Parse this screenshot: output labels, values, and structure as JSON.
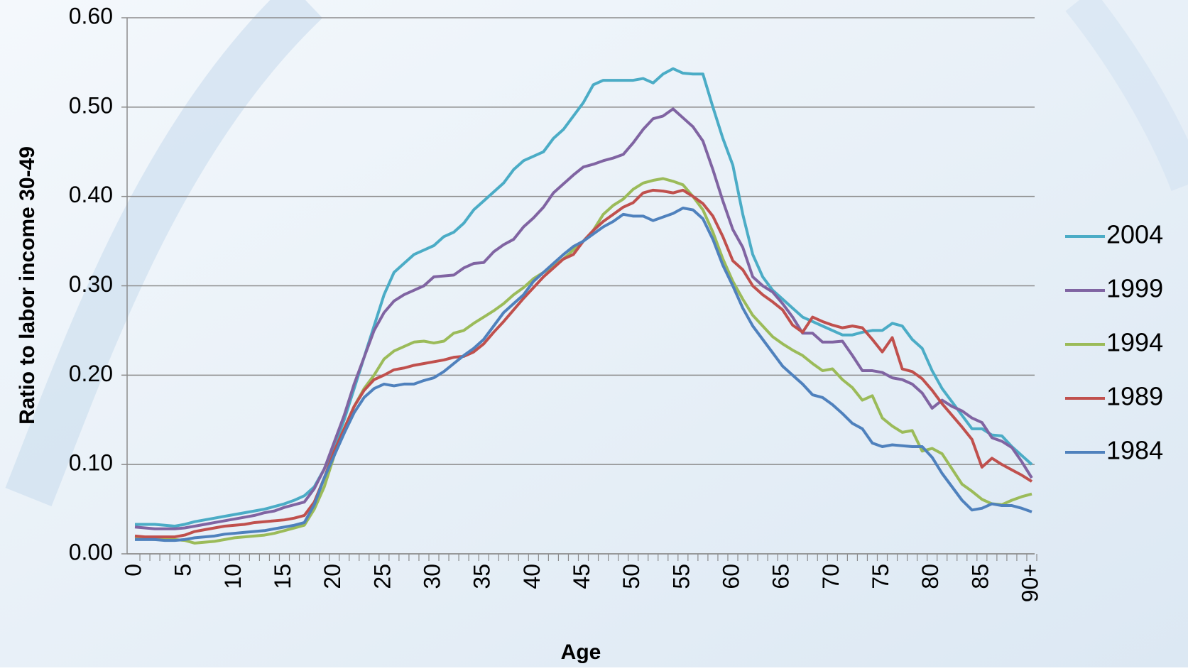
{
  "chart_data": {
    "type": "line",
    "xlabel": "Age",
    "ylabel": "Ratio to labor income 30-49",
    "categories": [
      "0",
      null,
      null,
      null,
      null,
      "5",
      null,
      null,
      null,
      null,
      "10",
      null,
      null,
      null,
      null,
      "15",
      null,
      null,
      null,
      null,
      "20",
      null,
      null,
      null,
      null,
      "25",
      null,
      null,
      null,
      null,
      "30",
      null,
      null,
      null,
      null,
      "35",
      null,
      null,
      null,
      null,
      "40",
      null,
      null,
      null,
      null,
      "45",
      null,
      null,
      null,
      null,
      "50",
      null,
      null,
      null,
      null,
      "55",
      null,
      null,
      null,
      null,
      "60",
      null,
      null,
      null,
      null,
      "65",
      null,
      null,
      null,
      null,
      "70",
      null,
      null,
      null,
      null,
      "75",
      null,
      null,
      null,
      null,
      "80",
      null,
      null,
      null,
      null,
      "85",
      null,
      null,
      null,
      null,
      "90+"
    ],
    "ylim": [
      0,
      0.6
    ],
    "yticks": [
      {
        "value": 0,
        "label": "0.00"
      },
      {
        "value": 0.1,
        "label": "0.10"
      },
      {
        "value": 0.2,
        "label": "0.20"
      },
      {
        "value": 0.3,
        "label": "0.30"
      },
      {
        "value": 0.4,
        "label": "0.40"
      },
      {
        "value": 0.5,
        "label": "0.50"
      },
      {
        "value": 0.6,
        "label": "0.60"
      }
    ],
    "grid": true,
    "legend": "right",
    "series": [
      {
        "name": "2004",
        "color": "#4bacc6",
        "values": [
          0.033,
          0.033,
          0.033,
          0.032,
          0.031,
          0.033,
          0.036,
          0.038,
          0.04,
          0.042,
          0.044,
          0.046,
          0.048,
          0.05,
          0.053,
          0.056,
          0.06,
          0.065,
          0.075,
          0.095,
          0.12,
          0.15,
          0.185,
          0.22,
          0.255,
          0.29,
          0.315,
          0.325,
          0.335,
          0.34,
          0.345,
          0.355,
          0.36,
          0.37,
          0.385,
          0.395,
          0.405,
          0.415,
          0.43,
          0.44,
          0.445,
          0.45,
          0.465,
          0.475,
          0.49,
          0.505,
          0.525,
          0.53,
          0.53,
          0.53,
          0.53,
          0.532,
          0.527,
          0.537,
          0.543,
          0.538,
          0.537,
          0.537,
          0.5,
          0.465,
          0.435,
          0.38,
          0.335,
          0.31,
          0.295,
          0.285,
          0.275,
          0.265,
          0.26,
          0.255,
          0.25,
          0.245,
          0.245,
          0.248,
          0.25,
          0.25,
          0.258,
          0.255,
          0.24,
          0.23,
          0.205,
          0.185,
          0.17,
          0.155,
          0.14,
          0.14,
          0.133,
          0.132,
          0.12,
          0.11,
          0.1
        ]
      },
      {
        "name": "1999",
        "color": "#8064a2",
        "values": [
          0.03,
          0.029,
          0.028,
          0.028,
          0.028,
          0.029,
          0.031,
          0.033,
          0.035,
          0.037,
          0.039,
          0.041,
          0.043,
          0.046,
          0.048,
          0.052,
          0.055,
          0.058,
          0.073,
          0.095,
          0.125,
          0.155,
          0.19,
          0.22,
          0.25,
          0.27,
          0.283,
          0.29,
          0.295,
          0.3,
          0.31,
          0.311,
          0.312,
          0.32,
          0.325,
          0.326,
          0.338,
          0.346,
          0.352,
          0.366,
          0.376,
          0.388,
          0.404,
          0.414,
          0.424,
          0.433,
          0.436,
          0.44,
          0.443,
          0.447,
          0.46,
          0.475,
          0.487,
          0.49,
          0.498,
          0.488,
          0.478,
          0.462,
          0.43,
          0.395,
          0.363,
          0.343,
          0.31,
          0.3,
          0.293,
          0.28,
          0.265,
          0.247,
          0.247,
          0.237,
          0.237,
          0.238,
          0.222,
          0.205,
          0.205,
          0.203,
          0.197,
          0.195,
          0.19,
          0.18,
          0.163,
          0.172,
          0.165,
          0.16,
          0.152,
          0.147,
          0.13,
          0.126,
          0.119,
          0.103,
          0.085
        ]
      },
      {
        "name": "1994",
        "color": "#9bbb59",
        "values": [
          0.017,
          0.017,
          0.016,
          0.016,
          0.016,
          0.015,
          0.012,
          0.013,
          0.014,
          0.016,
          0.018,
          0.019,
          0.02,
          0.021,
          0.023,
          0.026,
          0.029,
          0.032,
          0.05,
          0.075,
          0.11,
          0.14,
          0.165,
          0.185,
          0.2,
          0.218,
          0.227,
          0.232,
          0.237,
          0.238,
          0.236,
          0.238,
          0.247,
          0.25,
          0.258,
          0.265,
          0.272,
          0.28,
          0.29,
          0.298,
          0.308,
          0.315,
          0.322,
          0.33,
          0.34,
          0.35,
          0.362,
          0.38,
          0.39,
          0.397,
          0.408,
          0.415,
          0.418,
          0.42,
          0.417,
          0.413,
          0.4,
          0.385,
          0.36,
          0.33,
          0.305,
          0.285,
          0.267,
          0.255,
          0.243,
          0.235,
          0.228,
          0.222,
          0.213,
          0.205,
          0.207,
          0.195,
          0.186,
          0.172,
          0.177,
          0.152,
          0.143,
          0.136,
          0.138,
          0.115,
          0.118,
          0.112,
          0.095,
          0.078,
          0.07,
          0.061,
          0.056,
          0.055,
          0.06,
          0.064,
          0.067
        ]
      },
      {
        "name": "1989",
        "color": "#c0504d",
        "values": [
          0.02,
          0.019,
          0.019,
          0.019,
          0.019,
          0.021,
          0.025,
          0.027,
          0.029,
          0.031,
          0.032,
          0.033,
          0.035,
          0.036,
          0.037,
          0.038,
          0.04,
          0.043,
          0.058,
          0.085,
          0.115,
          0.14,
          0.165,
          0.183,
          0.195,
          0.2,
          0.206,
          0.208,
          0.211,
          0.213,
          0.215,
          0.217,
          0.22,
          0.221,
          0.226,
          0.235,
          0.248,
          0.26,
          0.273,
          0.286,
          0.298,
          0.31,
          0.32,
          0.33,
          0.335,
          0.35,
          0.362,
          0.372,
          0.38,
          0.388,
          0.393,
          0.404,
          0.407,
          0.406,
          0.404,
          0.407,
          0.4,
          0.392,
          0.378,
          0.355,
          0.328,
          0.318,
          0.3,
          0.29,
          0.282,
          0.273,
          0.256,
          0.248,
          0.265,
          0.26,
          0.256,
          0.253,
          0.255,
          0.253,
          0.24,
          0.226,
          0.242,
          0.207,
          0.204,
          0.196,
          0.183,
          0.168,
          0.155,
          0.142,
          0.128,
          0.097,
          0.107,
          0.1,
          0.094,
          0.088,
          0.081
        ]
      },
      {
        "name": "1984",
        "color": "#4f81bd",
        "values": [
          0.016,
          0.016,
          0.016,
          0.015,
          0.015,
          0.016,
          0.018,
          0.019,
          0.02,
          0.022,
          0.023,
          0.024,
          0.025,
          0.026,
          0.028,
          0.03,
          0.032,
          0.035,
          0.055,
          0.085,
          0.11,
          0.135,
          0.158,
          0.175,
          0.185,
          0.19,
          0.188,
          0.19,
          0.19,
          0.194,
          0.197,
          0.204,
          0.213,
          0.222,
          0.23,
          0.24,
          0.255,
          0.27,
          0.28,
          0.29,
          0.305,
          0.315,
          0.325,
          0.335,
          0.344,
          0.35,
          0.358,
          0.366,
          0.372,
          0.38,
          0.378,
          0.378,
          0.373,
          0.377,
          0.381,
          0.387,
          0.385,
          0.375,
          0.352,
          0.323,
          0.3,
          0.275,
          0.255,
          0.24,
          0.225,
          0.21,
          0.2,
          0.19,
          0.178,
          0.175,
          0.167,
          0.157,
          0.146,
          0.14,
          0.124,
          0.12,
          0.122,
          0.121,
          0.12,
          0.12,
          0.108,
          0.09,
          0.075,
          0.06,
          0.049,
          0.051,
          0.056,
          0.054,
          0.054,
          0.051,
          0.047
        ]
      }
    ]
  }
}
